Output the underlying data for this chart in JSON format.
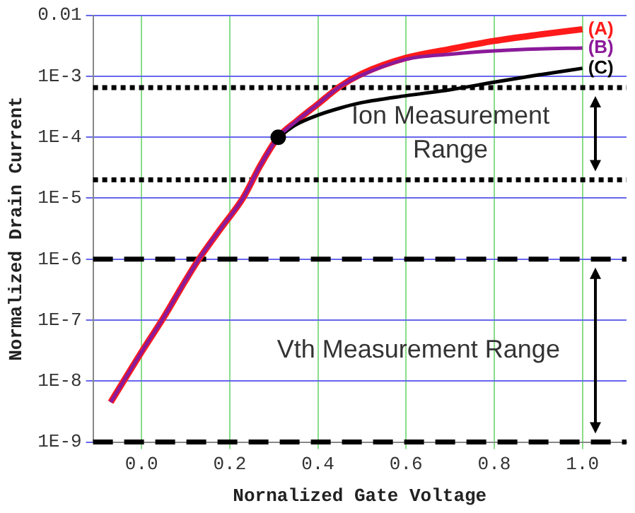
{
  "chart_data": {
    "type": "line",
    "xlabel": "Nornalized Gate Voltage",
    "ylabel": "Normalized Drain Current",
    "log": "y",
    "xlim": [
      -0.11,
      1.1
    ],
    "xticks": [
      {
        "value": 0,
        "label": "0.0"
      },
      0.2,
      0.4,
      0.6,
      0.8,
      {
        "value": 1,
        "label": "1.0"
      }
    ],
    "ylim": [
      1e-09,
      0.01
    ],
    "yticks": [
      {
        "value": 1e-09,
        "label": "1E-9"
      },
      {
        "value": 1e-08,
        "label": "1E-8"
      },
      {
        "value": 1e-07,
        "label": "1E-7"
      },
      {
        "value": 1e-06,
        "label": "1E-6"
      },
      {
        "value": 1e-05,
        "label": "1E-5"
      },
      {
        "value": 0.0001,
        "label": "1E-4"
      },
      {
        "value": 0.001,
        "label": "1E-3"
      },
      0.01
    ],
    "grid": true,
    "marker": "none",
    "line_style": "solid",
    "series": [
      {
        "name": "(A)",
        "color": "#ff1a1a",
        "x": [
          -0.07,
          0,
          0.05,
          0.1,
          0.13,
          0.18,
          0.23,
          0.27,
          0.31,
          0.35,
          0.4,
          0.45,
          0.5,
          0.6,
          0.7,
          0.8,
          0.9,
          1
        ],
        "values": [
          4.5e-09,
          3e-08,
          1.1e-07,
          4.5e-07,
          1e-06,
          3.2e-06,
          1e-05,
          3.5e-05,
          0.0001,
          0.00018,
          0.00035,
          0.00068,
          0.0011,
          0.002,
          0.0028,
          0.0038,
          0.0048,
          0.0059
        ]
      },
      {
        "name": "(C)",
        "color": "#000000",
        "x": [
          0.31,
          0.35,
          0.4,
          0.45,
          0.5,
          0.6,
          0.7,
          0.8,
          0.9,
          1
        ],
        "values": [
          0.0001,
          0.00016,
          0.00023,
          0.0003,
          0.00037,
          0.00048,
          0.0006,
          0.0008,
          0.00105,
          0.00135
        ]
      },
      {
        "name": "(B)",
        "color": "#8b1a9a",
        "x": [
          -0.07,
          0,
          0.05,
          0.1,
          0.13,
          0.18,
          0.23,
          0.27,
          0.31,
          0.35,
          0.4,
          0.45,
          0.5,
          0.6,
          0.7,
          0.8,
          0.9,
          1
        ],
        "values": [
          4.5e-09,
          3e-08,
          1.1e-07,
          4.5e-07,
          1e-06,
          3.2e-06,
          1e-05,
          3.5e-05,
          0.0001,
          0.00018,
          0.00035,
          0.00068,
          0.00105,
          0.0019,
          0.0023,
          0.0026,
          0.0028,
          0.0029
        ]
      },
      {
        "type": "scatter",
        "marker": "circle",
        "color": "#000000",
        "x": [
          0.31
        ],
        "values": [
          0.0001
        ]
      }
    ],
    "ref_lines": [
      {
        "axis": "y",
        "value": 0.00065,
        "color": "#000000",
        "line_style": "dotted"
      },
      {
        "axis": "y",
        "value": 2e-05,
        "color": "#000000",
        "line_style": "dotted"
      },
      {
        "axis": "y",
        "value": 1e-06,
        "color": "#000000",
        "line_style": "dashed"
      },
      {
        "axis": "y",
        "value": 1e-09,
        "color": "#000000",
        "line_style": "dashed"
      }
    ],
    "annotations": [
      "Ion Measurement Range",
      "Vth Measurement Range"
    ]
  }
}
